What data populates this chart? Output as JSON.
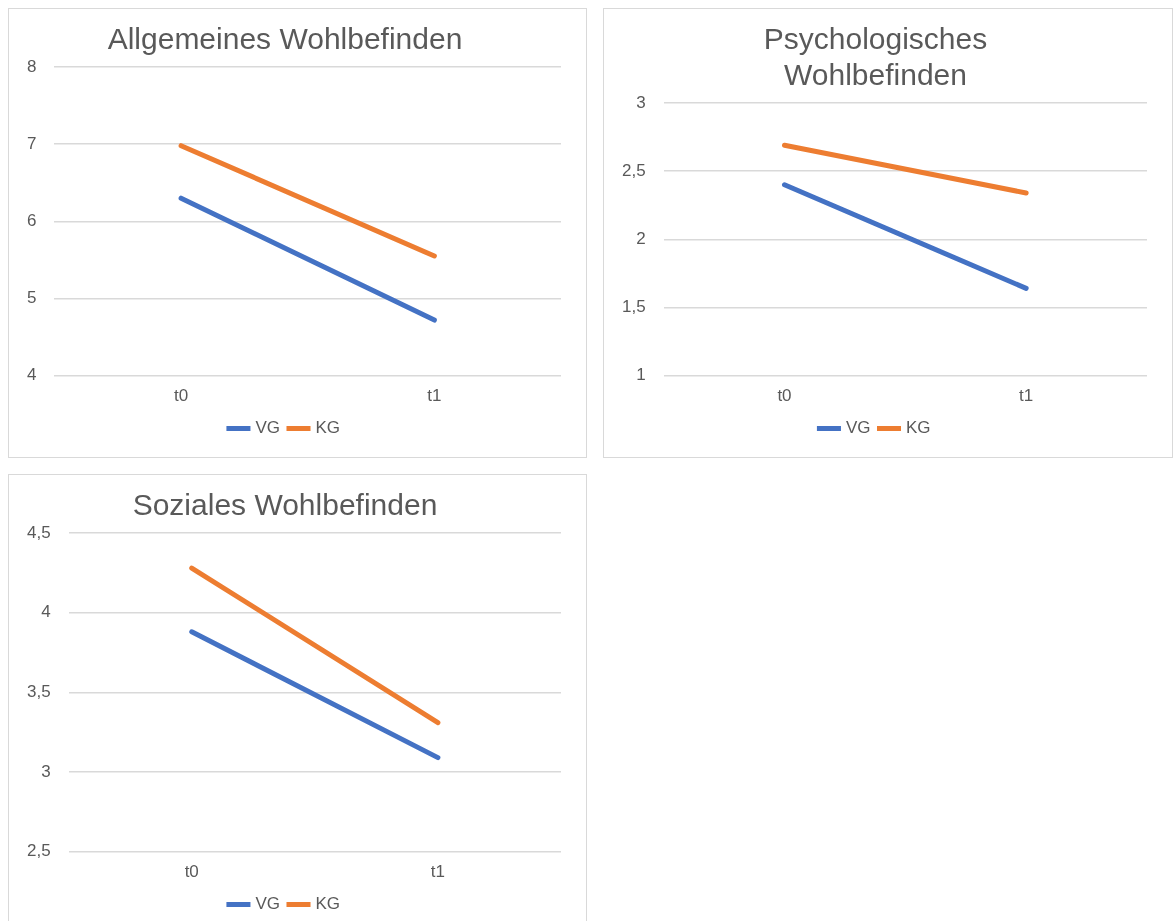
{
  "chart_data": [
    {
      "type": "line",
      "title": "Allgemeines Wohlbefinden",
      "categories": [
        "t0",
        "t1"
      ],
      "series": [
        {
          "name": "VG",
          "color": "#4472c4",
          "values": [
            6.3,
            4.72
          ]
        },
        {
          "name": "KG",
          "color": "#ed7d31",
          "values": [
            6.98,
            5.55
          ]
        }
      ],
      "ylim": [
        4,
        8
      ],
      "yticks": [
        4,
        5,
        6,
        7,
        8
      ],
      "grid": "y",
      "legend": "bottom",
      "marker": "none",
      "line_style": "solid"
    },
    {
      "type": "line",
      "title": "Psychologisches Wohlbefinden",
      "categories": [
        "t0",
        "t1"
      ],
      "series": [
        {
          "name": "VG",
          "color": "#4472c4",
          "values": [
            2.4,
            1.64
          ]
        },
        {
          "name": "KG",
          "color": "#ed7d31",
          "values": [
            2.69,
            2.34
          ]
        }
      ],
      "ylim": [
        1,
        3
      ],
      "yticks": [
        1,
        {
          "value": 1.5,
          "label": "1,5"
        },
        2,
        {
          "value": 2.5,
          "label": "2,5"
        },
        3
      ],
      "grid": "y",
      "legend": "bottom",
      "marker": "none",
      "line_style": "solid"
    },
    {
      "type": "line",
      "title": "Soziales Wohlbefinden",
      "categories": [
        "t0",
        "t1"
      ],
      "series": [
        {
          "name": "VG",
          "color": "#4472c4",
          "values": [
            3.88,
            3.09
          ]
        },
        {
          "name": "KG",
          "color": "#ed7d31",
          "values": [
            4.28,
            3.31
          ]
        }
      ],
      "ylim": [
        2.5,
        4.5
      ],
      "yticks": [
        {
          "value": 2.5,
          "label": "2,5"
        },
        3,
        {
          "value": 3.5,
          "label": "3,5"
        },
        4,
        {
          "value": 4.5,
          "label": "4,5"
        }
      ],
      "grid": "y",
      "legend": "bottom",
      "marker": "none",
      "line_style": "solid"
    }
  ]
}
